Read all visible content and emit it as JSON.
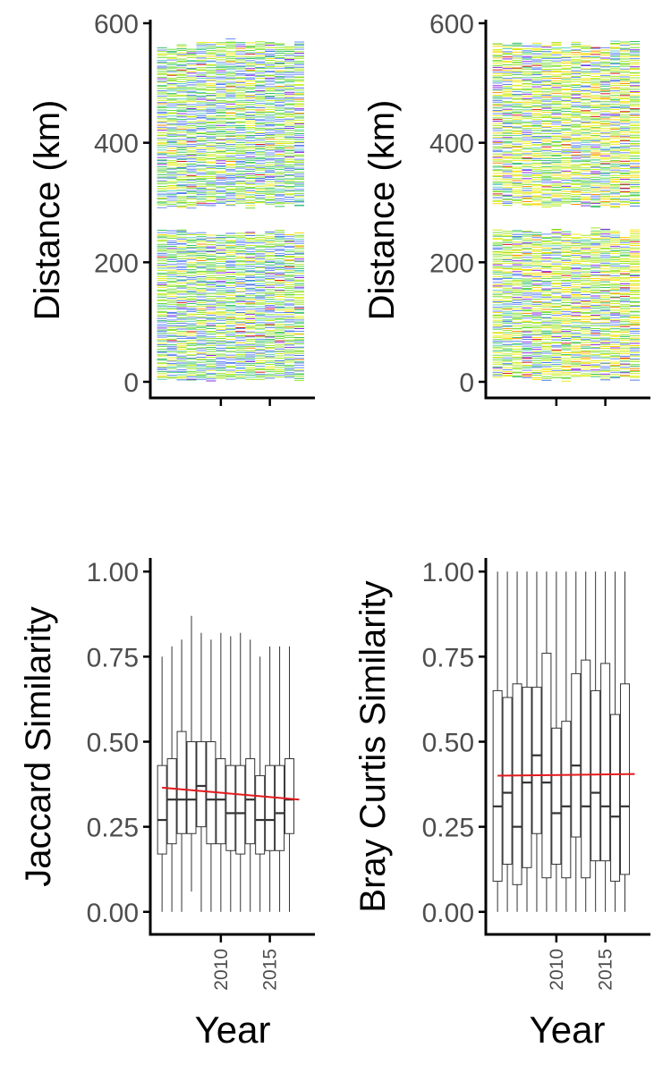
{
  "colors": {
    "axis": "#000000",
    "tick_label": "#4d4d4d",
    "trend": "#e31a1c",
    "box_stroke": "#333333",
    "strip_palette": [
      "#6a8cff",
      "#4f7ae8",
      "#39c36a",
      "#6fdc3c",
      "#9ee62a",
      "#c8ef1a",
      "#eeee22",
      "#ffd700",
      "#ff8c00",
      "#d7191c",
      "#8a2be2",
      "#5fd0c0"
    ]
  },
  "chart_data": [
    {
      "id": "top-left",
      "type": "strip",
      "title": "",
      "ylabel": "Distance (km)",
      "xlabel": "",
      "ylim": [
        0,
        600
      ],
      "yticks": [
        0,
        200,
        400,
        600
      ],
      "xlim": [
        2002.8,
        2019.6
      ],
      "xticks": [
        2010,
        2015
      ],
      "show_x_tick_labels": false,
      "grid": false,
      "years": [
        2004,
        2005,
        2006,
        2007,
        2008,
        2009,
        2010,
        2011,
        2012,
        2013,
        2014,
        2015,
        2016,
        2017,
        2018
      ],
      "segments": [
        {
          "from": 0,
          "to": 250
        },
        {
          "from": 290,
          "to": 565
        }
      ],
      "dominant_hue": "green-blue"
    },
    {
      "id": "top-right",
      "type": "strip",
      "title": "",
      "ylabel": "Distance (km)",
      "xlabel": "",
      "ylim": [
        0,
        600
      ],
      "yticks": [
        0,
        200,
        400,
        600
      ],
      "xlim": [
        2002.8,
        2019.6
      ],
      "xticks": [
        2010,
        2015
      ],
      "show_x_tick_labels": false,
      "grid": false,
      "years": [
        2004,
        2005,
        2006,
        2007,
        2008,
        2009,
        2010,
        2011,
        2012,
        2013,
        2014,
        2015,
        2016,
        2017,
        2018
      ],
      "segments": [
        {
          "from": 0,
          "to": 250
        },
        {
          "from": 290,
          "to": 565
        }
      ],
      "dominant_hue": "yellow-green"
    },
    {
      "id": "bottom-left",
      "type": "boxplot",
      "title": "",
      "ylabel": "Jaccard Similarity",
      "xlabel": "Year",
      "ylim": [
        -0.04,
        1.04
      ],
      "yticks": [
        "0.00",
        "0.25",
        "0.50",
        "0.75",
        "1.00"
      ],
      "xlim": [
        2002.8,
        2019.6
      ],
      "xticks": [
        "2010",
        "2015"
      ],
      "grid": false,
      "boxes": [
        {
          "x": 2004,
          "min": 0.0,
          "q1": 0.17,
          "median": 0.27,
          "q3": 0.43,
          "max": 0.75
        },
        {
          "x": 2005,
          "min": 0.0,
          "q1": 0.2,
          "median": 0.33,
          "q3": 0.45,
          "max": 0.78
        },
        {
          "x": 2006,
          "min": 0.0,
          "q1": 0.23,
          "median": 0.33,
          "q3": 0.53,
          "max": 0.8
        },
        {
          "x": 2007,
          "min": 0.06,
          "q1": 0.23,
          "median": 0.33,
          "q3": 0.5,
          "max": 0.87
        },
        {
          "x": 2008,
          "min": 0.0,
          "q1": 0.25,
          "median": 0.37,
          "q3": 0.5,
          "max": 0.82
        },
        {
          "x": 2009,
          "min": 0.0,
          "q1": 0.2,
          "median": 0.33,
          "q3": 0.5,
          "max": 0.8
        },
        {
          "x": 2010,
          "min": 0.0,
          "q1": 0.2,
          "median": 0.33,
          "q3": 0.45,
          "max": 0.82
        },
        {
          "x": 2011,
          "min": 0.0,
          "q1": 0.18,
          "median": 0.29,
          "q3": 0.43,
          "max": 0.81
        },
        {
          "x": 2012,
          "min": 0.0,
          "q1": 0.17,
          "median": 0.29,
          "q3": 0.43,
          "max": 0.82
        },
        {
          "x": 2013,
          "min": 0.0,
          "q1": 0.2,
          "median": 0.33,
          "q3": 0.45,
          "max": 0.8
        },
        {
          "x": 2014,
          "min": 0.0,
          "q1": 0.17,
          "median": 0.27,
          "q3": 0.4,
          "max": 0.75
        },
        {
          "x": 2015,
          "min": 0.0,
          "q1": 0.18,
          "median": 0.27,
          "q3": 0.43,
          "max": 0.78
        },
        {
          "x": 2016,
          "min": 0.0,
          "q1": 0.18,
          "median": 0.29,
          "q3": 0.43,
          "max": 0.78
        },
        {
          "x": 2017,
          "min": 0.0,
          "q1": 0.23,
          "median": 0.33,
          "q3": 0.45,
          "max": 0.78
        }
      ],
      "trend": {
        "x": [
          2004,
          2018
        ],
        "y": [
          0.365,
          0.33
        ]
      }
    },
    {
      "id": "bottom-right",
      "type": "boxplot",
      "title": "",
      "ylabel": "Bray Curtis Similarity",
      "xlabel": "Year",
      "ylim": [
        -0.04,
        1.04
      ],
      "yticks": [
        "0.00",
        "0.25",
        "0.50",
        "0.75",
        "1.00"
      ],
      "xlim": [
        2002.8,
        2019.6
      ],
      "xticks": [
        "2010",
        "2015"
      ],
      "grid": false,
      "boxes": [
        {
          "x": 2004,
          "min": 0.0,
          "q1": 0.09,
          "median": 0.31,
          "q3": 0.65,
          "max": 1.0
        },
        {
          "x": 2005,
          "min": 0.0,
          "q1": 0.14,
          "median": 0.35,
          "q3": 0.63,
          "max": 1.0
        },
        {
          "x": 2006,
          "min": 0.0,
          "q1": 0.08,
          "median": 0.25,
          "q3": 0.67,
          "max": 1.0
        },
        {
          "x": 2007,
          "min": 0.0,
          "q1": 0.13,
          "median": 0.38,
          "q3": 0.66,
          "max": 1.0
        },
        {
          "x": 2008,
          "min": 0.0,
          "q1": 0.23,
          "median": 0.46,
          "q3": 0.66,
          "max": 1.0
        },
        {
          "x": 2009,
          "min": 0.0,
          "q1": 0.1,
          "median": 0.38,
          "q3": 0.76,
          "max": 1.0
        },
        {
          "x": 2010,
          "min": 0.0,
          "q1": 0.14,
          "median": 0.29,
          "q3": 0.54,
          "max": 1.0
        },
        {
          "x": 2011,
          "min": 0.0,
          "q1": 0.1,
          "median": 0.31,
          "q3": 0.56,
          "max": 1.0
        },
        {
          "x": 2012,
          "min": 0.0,
          "q1": 0.22,
          "median": 0.43,
          "q3": 0.7,
          "max": 1.0
        },
        {
          "x": 2013,
          "min": 0.0,
          "q1": 0.1,
          "median": 0.31,
          "q3": 0.74,
          "max": 1.0
        },
        {
          "x": 2014,
          "min": 0.0,
          "q1": 0.15,
          "median": 0.35,
          "q3": 0.65,
          "max": 1.0
        },
        {
          "x": 2015,
          "min": 0.0,
          "q1": 0.15,
          "median": 0.31,
          "q3": 0.73,
          "max": 1.0
        },
        {
          "x": 2016,
          "min": 0.0,
          "q1": 0.09,
          "median": 0.28,
          "q3": 0.58,
          "max": 1.0
        },
        {
          "x": 2017,
          "min": 0.0,
          "q1": 0.11,
          "median": 0.31,
          "q3": 0.67,
          "max": 1.0
        }
      ],
      "trend": {
        "x": [
          2004,
          2018
        ],
        "y": [
          0.4,
          0.405
        ]
      }
    }
  ]
}
